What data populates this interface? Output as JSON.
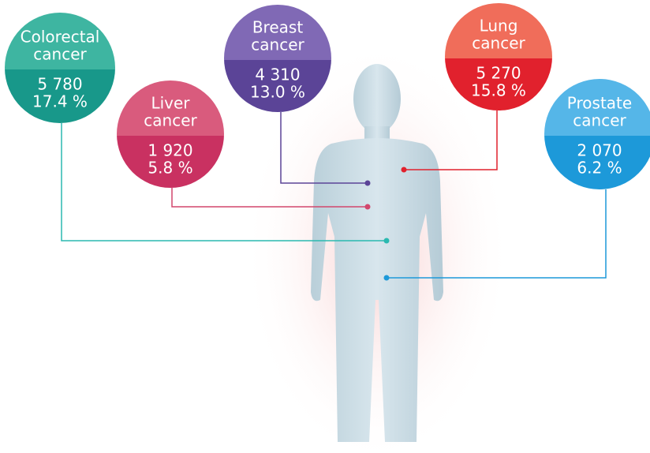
{
  "nodes": [
    {
      "label": [
        "Colorectal",
        "cancer"
      ],
      "count": "5 780",
      "percent": "17.4 %"
    },
    {
      "label": [
        "Liver",
        "cancer"
      ],
      "count": "1 920",
      "percent": "5.8 %"
    },
    {
      "label": [
        "Breast",
        "cancer"
      ],
      "count": "4 310",
      "percent": "13.0 %"
    },
    {
      "label": [
        "Lung",
        "cancer"
      ],
      "count": "5 270",
      "percent": "15.8 %"
    },
    {
      "label": [
        "Prostate",
        "cancer"
      ],
      "count": "2 070",
      "percent": "6.2 %"
    }
  ]
}
